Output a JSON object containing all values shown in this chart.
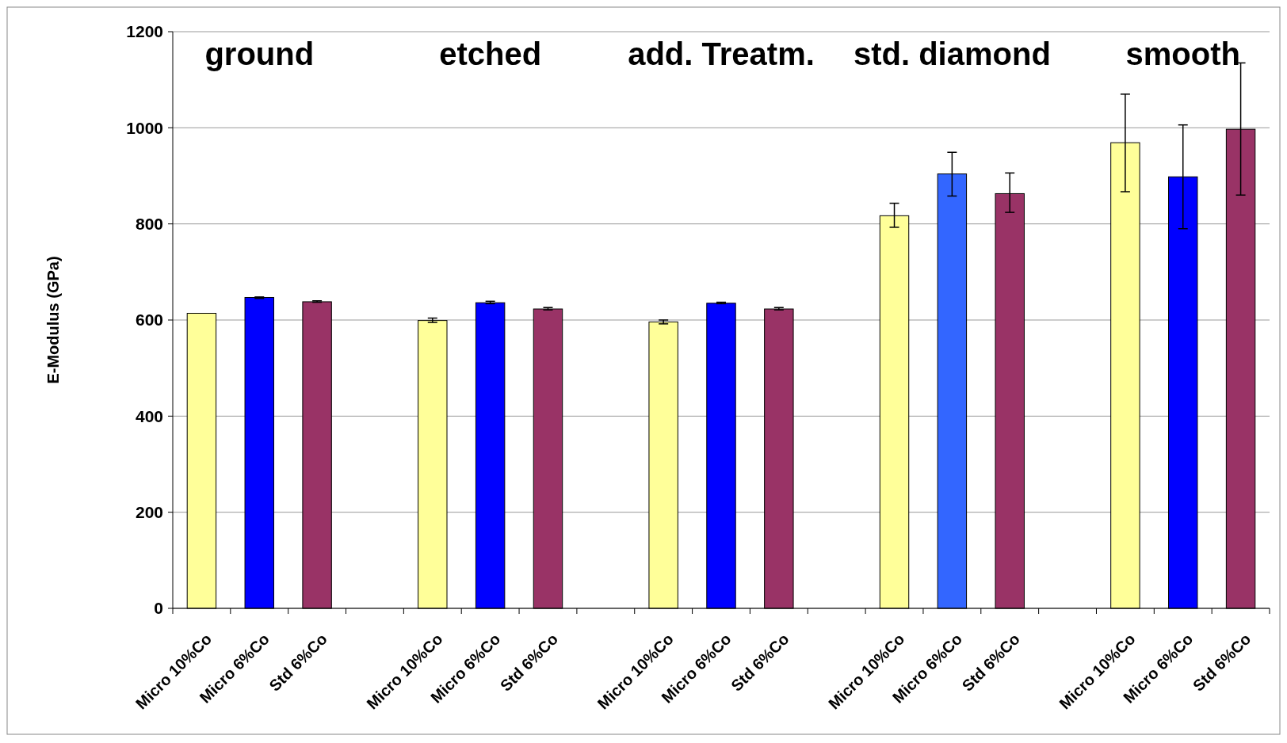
{
  "chart_data": {
    "type": "bar",
    "ylabel": "E-Modulus (GPa)",
    "categories": [
      "Micro 10%Co",
      "Micro 6%Co",
      "Std 6%Co",
      null,
      "Micro 10%Co",
      "Micro 6%Co",
      "Std 6%Co",
      null,
      "Micro 10%Co",
      "Micro 6%Co",
      "Std 6%Co",
      null,
      "Micro 10%Co",
      "Micro 6%Co",
      "Std 6%Co",
      null,
      "Micro 10%Co",
      "Micro 6%Co",
      "Std 6%Co"
    ],
    "values": [
      614,
      647,
      638,
      null,
      599,
      636,
      623,
      null,
      596,
      635,
      623,
      null,
      817,
      904,
      863,
      null,
      969,
      898,
      997
    ],
    "colors": [
      "#ffff99",
      "#0000ff",
      "#993366",
      null,
      "#ffff99",
      "#0000ff",
      "#993366",
      null,
      "#ffff99",
      "#0000ff",
      "#993366",
      null,
      "#ffff99",
      "#3366ff",
      "#993366",
      null,
      "#ffff99",
      "#0000ff",
      "#993366"
    ],
    "errors": [
      null,
      [
        645,
        648
      ],
      [
        637,
        640
      ],
      null,
      [
        595,
        604
      ],
      [
        634,
        639
      ],
      [
        621,
        626
      ],
      null,
      [
        592,
        600
      ],
      [
        634,
        637
      ],
      [
        621,
        626
      ],
      null,
      [
        793,
        843
      ],
      [
        858,
        949
      ],
      [
        824,
        906
      ],
      null,
      [
        867,
        1070
      ],
      [
        790,
        1006
      ],
      [
        860,
        1135
      ]
    ],
    "ylim": [
      0,
      1200
    ],
    "yticks": [
      0,
      200,
      400,
      600,
      800,
      1000,
      1200
    ],
    "grid": "y",
    "annotations": [
      "ground",
      "etched",
      "add. Treatm.",
      "std. diamond",
      "smooth"
    ]
  }
}
